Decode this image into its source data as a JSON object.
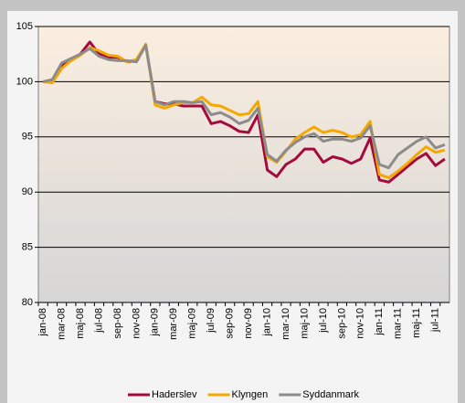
{
  "chart_data": {
    "type": "line",
    "categories": [
      "jan-08",
      null,
      "mar-08",
      null,
      "maj-08",
      null,
      "jul-08",
      null,
      "sep-08",
      null,
      "nov-08",
      null,
      "jan-09",
      null,
      "mar-09",
      null,
      "maj-09",
      null,
      "jul-09",
      null,
      "sep-09",
      null,
      "nov-09",
      null,
      "jan-10",
      null,
      "mar-10",
      null,
      "maj-10",
      null,
      "jul-10",
      null,
      "sep-10",
      null,
      "nov-10",
      null,
      "jan-11",
      null,
      "mar-11",
      null,
      "maj-11",
      null,
      "jul-11",
      null
    ],
    "series": [
      {
        "name": "Haderslev",
        "color": "#a50a3c",
        "values": [
          100,
          100,
          101.5,
          102,
          102.5,
          103.6,
          102.5,
          102.2,
          102.2,
          101.8,
          101.9,
          103.3,
          98.2,
          98,
          98,
          97.8,
          97.8,
          97.8,
          96.2,
          96.4,
          96.0,
          95.5,
          95.4,
          97.0,
          92,
          91.4,
          92.5,
          93.0,
          93.9,
          93.9,
          92.7,
          93.2,
          93.0,
          92.6,
          93.0,
          94.9,
          91.1,
          90.9,
          91.6,
          92.3,
          93.0,
          93.5,
          92.4,
          93.0
        ]
      },
      {
        "name": "Klyngen",
        "color": "#f5a800",
        "values": [
          100,
          99.9,
          101.2,
          101.9,
          102.4,
          103.1,
          102.8,
          102.4,
          102.3,
          101.8,
          102.0,
          103.4,
          97.9,
          97.6,
          97.9,
          98.1,
          98.1,
          98.6,
          97.9,
          97.8,
          97.4,
          97.0,
          97.1,
          98.2,
          93.2,
          92.7,
          93.7,
          94.8,
          95.4,
          95.9,
          95.4,
          95.6,
          95.4,
          95.0,
          95.2,
          96.4,
          91.6,
          91.3,
          91.9,
          92.6,
          93.4,
          94.1,
          93.6,
          93.8
        ]
      },
      {
        "name": "Syddanmark",
        "color": "#8c8c8c",
        "values": [
          100,
          100.2,
          101.7,
          102.1,
          102.5,
          103.0,
          102.3,
          102.0,
          101.9,
          101.9,
          101.8,
          103.3,
          98.2,
          97.9,
          98.2,
          98.2,
          98.1,
          98.2,
          97.0,
          97.2,
          96.8,
          96.2,
          96.5,
          97.6,
          93.4,
          92.8,
          93.8,
          94.5,
          95.0,
          95.3,
          94.6,
          94.8,
          94.8,
          94.6,
          94.9,
          96.0,
          92.5,
          92.2,
          93.4,
          94.0,
          94.6,
          95.0,
          94.0,
          94.3
        ]
      }
    ],
    "ylim": [
      80,
      105
    ],
    "yticks": [
      80,
      85,
      90,
      95,
      100,
      105
    ],
    "grid": true
  }
}
